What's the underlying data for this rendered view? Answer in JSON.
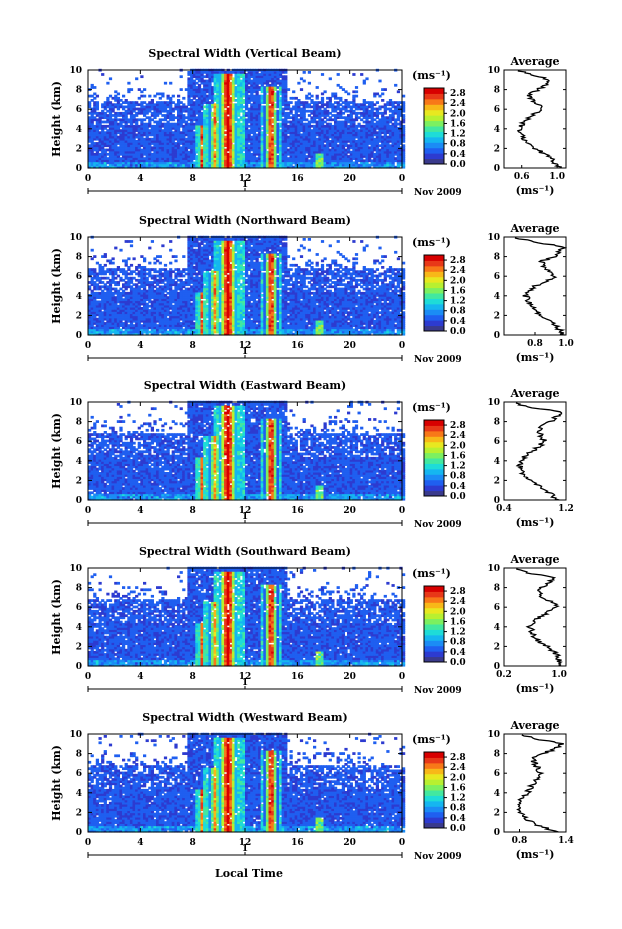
{
  "xlabel": "Local Time",
  "date_label": "Nov 2009",
  "colorbar": {
    "unit": "(ms⁻¹)",
    "ticks": [
      "0.0",
      "0.4",
      "0.8",
      "1.2",
      "1.6",
      "2.0",
      "2.4",
      "2.8"
    ],
    "range": [
      0,
      3.0
    ],
    "colors": [
      "#3a3a8c",
      "#2d3bd0",
      "#1f5ff0",
      "#1b8cf5",
      "#15b6f0",
      "#1edcd8",
      "#42e8a0",
      "#7cf060",
      "#b8f030",
      "#e8e820",
      "#f8b818",
      "#f87818",
      "#e83818",
      "#d80000"
    ]
  },
  "chart_data": [
    {
      "type": "heatmap",
      "title": "Spectral Width (Vertical Beam)",
      "ylabel": "Height (km)",
      "xlim": [
        0,
        24
      ],
      "ylim": [
        0,
        10
      ],
      "x_ticks": [
        "0",
        "4",
        "8",
        "12",
        "16",
        "20",
        "0"
      ],
      "day_tick": "1",
      "y_ticks": [
        "0",
        "2",
        "4",
        "6",
        "8",
        "10"
      ],
      "profile": {
        "title": "Average",
        "xlabel": "(ms⁻¹)",
        "xlim": [
          0.4,
          1.1
        ],
        "x_ticks": [
          "0.6",
          "1.0"
        ],
        "heights": [
          0,
          0.5,
          1,
          1.5,
          2,
          2.5,
          3,
          3.5,
          4,
          4.5,
          5,
          5.5,
          6,
          6.5,
          7,
          7.5,
          8,
          8.5,
          9,
          9.5,
          10
        ],
        "values": [
          1.02,
          0.98,
          0.92,
          0.85,
          0.74,
          0.66,
          0.62,
          0.6,
          0.58,
          0.61,
          0.66,
          0.74,
          0.82,
          0.78,
          0.72,
          0.68,
          0.78,
          0.88,
          0.92,
          0.7,
          0.55
        ]
      }
    },
    {
      "type": "heatmap",
      "title": "Spectral Width (Northward Beam)",
      "ylabel": "Height (km)",
      "xlim": [
        0,
        24
      ],
      "ylim": [
        0,
        10
      ],
      "x_ticks": [
        "0",
        "4",
        "8",
        "12",
        "16",
        "20",
        "0"
      ],
      "day_tick": "1",
      "y_ticks": [
        "0",
        "2",
        "4",
        "6",
        "8",
        "10"
      ],
      "profile": {
        "title": "Average",
        "xlabel": "(ms⁻¹)",
        "xlim": [
          0.6,
          1.0
        ],
        "x_ticks": [
          "0.8",
          "1.0"
        ],
        "heights": [
          0,
          0.5,
          1,
          1.5,
          2,
          2.5,
          3,
          3.5,
          4,
          4.5,
          5,
          5.5,
          6,
          6.5,
          7,
          7.5,
          8,
          8.5,
          9,
          9.5,
          10
        ],
        "values": [
          0.98,
          0.96,
          0.93,
          0.9,
          0.84,
          0.8,
          0.78,
          0.76,
          0.74,
          0.76,
          0.8,
          0.88,
          0.93,
          0.9,
          0.86,
          0.84,
          0.92,
          0.96,
          0.98,
          0.8,
          0.66
        ]
      }
    },
    {
      "type": "heatmap",
      "title": "Spectral Width (Eastward Beam)",
      "ylabel": "Height (km)",
      "xlim": [
        0,
        24
      ],
      "ylim": [
        0,
        10
      ],
      "x_ticks": [
        "0",
        "4",
        "8",
        "12",
        "16",
        "20",
        "0"
      ],
      "day_tick": "1",
      "y_ticks": [
        "0",
        "2",
        "4",
        "6",
        "8",
        "10"
      ],
      "profile": {
        "title": "Average",
        "xlabel": "(ms⁻¹)",
        "xlim": [
          0.4,
          1.2
        ],
        "x_ticks": [
          "0.4",
          "1.2"
        ],
        "heights": [
          0,
          0.5,
          1,
          1.5,
          2,
          2.5,
          3,
          3.5,
          4,
          4.5,
          5,
          5.5,
          6,
          6.5,
          7,
          7.5,
          8,
          8.5,
          9,
          9.5,
          10
        ],
        "values": [
          1.1,
          1.02,
          0.95,
          0.84,
          0.74,
          0.66,
          0.62,
          0.6,
          0.62,
          0.68,
          0.76,
          0.86,
          0.92,
          0.88,
          0.84,
          0.9,
          1.0,
          1.08,
          1.12,
          0.7,
          0.48
        ]
      }
    },
    {
      "type": "heatmap",
      "title": "Spectral Width (Southward Beam)",
      "ylabel": "Height (km)",
      "xlim": [
        0,
        24
      ],
      "ylim": [
        0,
        10
      ],
      "x_ticks": [
        "0",
        "4",
        "8",
        "12",
        "16",
        "20",
        "0"
      ],
      "day_tick": "1",
      "y_ticks": [
        "0",
        "2",
        "4",
        "6",
        "8",
        "10"
      ],
      "profile": {
        "title": "Average",
        "xlabel": "(ms⁻¹)",
        "xlim": [
          0.2,
          1.1
        ],
        "x_ticks": [
          "0.2",
          "1.0"
        ],
        "heights": [
          0,
          0.5,
          1,
          1.5,
          2,
          2.5,
          3,
          3.5,
          4,
          4.5,
          5,
          5.5,
          6,
          6.5,
          7,
          7.5,
          8,
          8.5,
          9,
          9.5,
          10
        ],
        "values": [
          1.02,
          1.0,
          0.98,
          0.92,
          0.82,
          0.7,
          0.64,
          0.6,
          0.58,
          0.62,
          0.72,
          0.84,
          0.96,
          0.9,
          0.76,
          0.7,
          0.76,
          0.86,
          0.92,
          0.55,
          0.3
        ]
      }
    },
    {
      "type": "heatmap",
      "title": "Spectral Width (Westward Beam)",
      "ylabel": "Height (km)",
      "xlim": [
        0,
        24
      ],
      "ylim": [
        0,
        10
      ],
      "x_ticks": [
        "0",
        "4",
        "8",
        "12",
        "16",
        "20",
        "0"
      ],
      "day_tick": "1",
      "y_ticks": [
        "0",
        "2",
        "4",
        "6",
        "8",
        "10"
      ],
      "profile": {
        "title": "Average",
        "xlabel": "(ms⁻¹)",
        "xlim": [
          0.6,
          1.4
        ],
        "x_ticks": [
          "0.8",
          "1.4"
        ],
        "heights": [
          0,
          0.5,
          1,
          1.5,
          2,
          2.5,
          3,
          3.5,
          4,
          4.5,
          5,
          5.5,
          6,
          6.5,
          7,
          7.5,
          8,
          8.5,
          9,
          9.5,
          10
        ],
        "values": [
          1.3,
          1.1,
          0.95,
          0.86,
          0.8,
          0.78,
          0.8,
          0.84,
          0.9,
          0.94,
          0.98,
          1.02,
          1.06,
          1.04,
          1.0,
          0.96,
          1.1,
          1.26,
          1.36,
          1.0,
          0.8
        ]
      }
    }
  ]
}
